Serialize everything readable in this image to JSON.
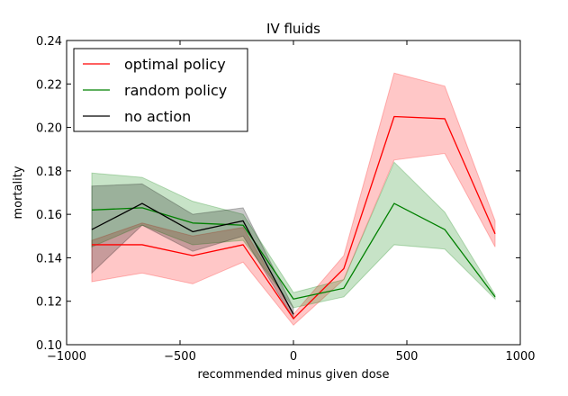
{
  "chart_data": {
    "type": "line",
    "title": "IV fluids",
    "xlabel": "recommended minus given dose",
    "ylabel": "mortality",
    "xlim": [
      -1000,
      1000
    ],
    "ylim": [
      0.1,
      0.24
    ],
    "xticks": [
      -1000,
      -500,
      0,
      500,
      1000
    ],
    "xtick_labels": [
      "−1000",
      "−500",
      "0",
      "500",
      "1000"
    ],
    "yticks": [
      0.1,
      0.12,
      0.14,
      0.16,
      0.18,
      0.2,
      0.22,
      0.24
    ],
    "ytick_labels": [
      "0.10",
      "0.12",
      "0.14",
      "0.16",
      "0.18",
      "0.20",
      "0.22",
      "0.24"
    ],
    "grid": false,
    "legend_position": "top-left",
    "series": [
      {
        "name": "optimal policy",
        "color": "#ff0000",
        "x": [
          -889,
          -667,
          -444,
          -222,
          0,
          222,
          444,
          667,
          889
        ],
        "y": [
          0.146,
          0.146,
          0.141,
          0.146,
          0.112,
          0.135,
          0.205,
          0.204,
          0.151
        ],
        "lower": [
          0.129,
          0.133,
          0.128,
          0.138,
          0.109,
          0.13,
          0.185,
          0.188,
          0.145
        ],
        "upper": [
          0.148,
          0.156,
          0.15,
          0.154,
          0.114,
          0.141,
          0.225,
          0.219,
          0.157
        ]
      },
      {
        "name": "random policy",
        "color": "#008000",
        "x": [
          -889,
          -667,
          -444,
          -222,
          0,
          222,
          444,
          667,
          889
        ],
        "y": [
          0.162,
          0.163,
          0.156,
          0.155,
          0.121,
          0.126,
          0.165,
          0.153,
          0.122
        ],
        "lower": [
          0.145,
          0.155,
          0.146,
          0.148,
          0.117,
          0.122,
          0.146,
          0.144,
          0.121
        ],
        "upper": [
          0.179,
          0.177,
          0.166,
          0.16,
          0.124,
          0.13,
          0.184,
          0.161,
          0.123
        ]
      },
      {
        "name": "no action",
        "color": "#000000",
        "x": [
          -889,
          -667,
          -444,
          -222,
          0
        ],
        "y": [
          0.153,
          0.165,
          0.152,
          0.157,
          0.114
        ],
        "lower": [
          0.133,
          0.155,
          0.143,
          0.15,
          0.112
        ],
        "upper": [
          0.173,
          0.174,
          0.16,
          0.163,
          0.117
        ]
      }
    ]
  }
}
